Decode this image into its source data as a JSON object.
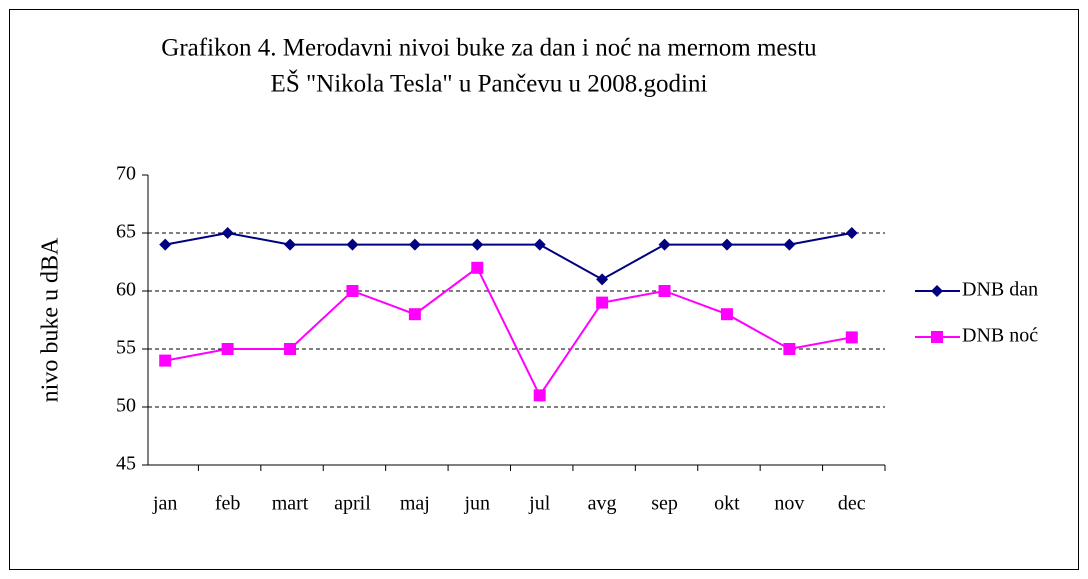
{
  "chart_data": {
    "type": "line",
    "title": [
      "Grafikon 4. Merodavni nivoi buke za dan i noć na mernom mestu",
      "EŠ \"Nikola Tesla\" u Pančevu u 2008.godini"
    ],
    "y_label": "nivo buke u dBA",
    "categories": [
      "jan",
      "feb",
      "mart",
      "april",
      "maj",
      "jun",
      "jul",
      "avg",
      "sep",
      "okt",
      "nov",
      "dec"
    ],
    "series": [
      {
        "name": "DNB dan",
        "color": "#000080",
        "marker": "diamond",
        "values": [
          64,
          65,
          64,
          64,
          64,
          64,
          64,
          61,
          64,
          64,
          64,
          65
        ]
      },
      {
        "name": "DNB noć",
        "color": "#ff00ff",
        "marker": "square",
        "values": [
          54,
          55,
          55,
          60,
          58,
          62,
          51,
          59,
          60,
          58,
          55,
          56
        ]
      }
    ],
    "ylim": [
      45,
      70
    ],
    "yticks": [
      45,
      50,
      55,
      60,
      65,
      70
    ],
    "grid": true,
    "legend": "right"
  }
}
